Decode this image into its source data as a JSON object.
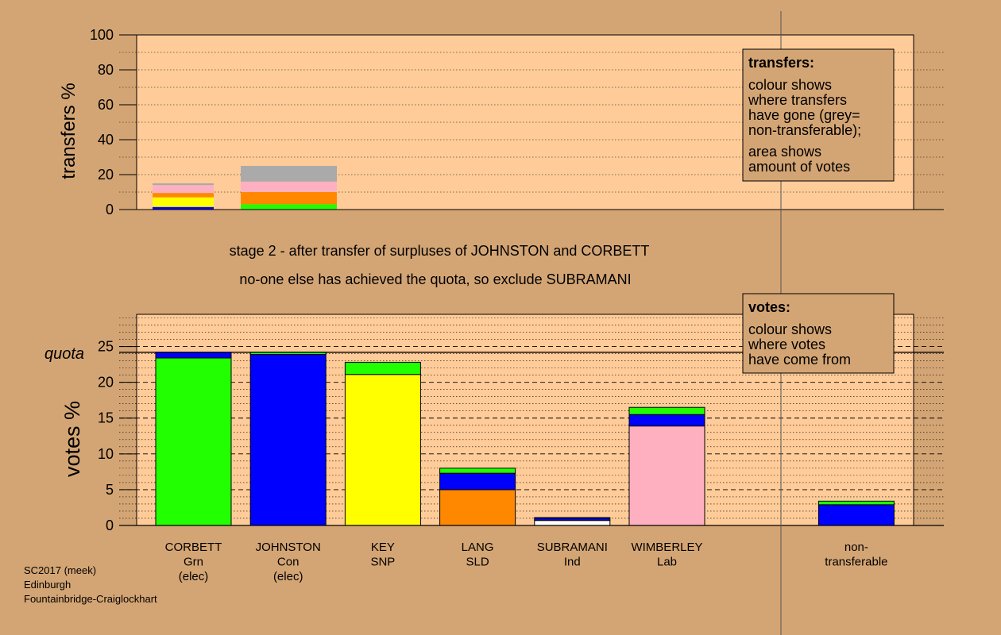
{
  "headings": {
    "line1": "stage 2 - after transfer of surpluses of JOHNSTON and CORBETT",
    "line2": "no-one else has achieved the quota, so exclude SUBRAMANI"
  },
  "colors": {
    "panel_bg": "#ffcc99",
    "outer_bg": "#d4a574",
    "green": "#22ff00",
    "blue": "#0000ff",
    "yellow": "#ffff00",
    "orange": "#ff8800",
    "pink": "#ffb0c0",
    "grey": "#aaaaaa",
    "white": "#ffffff"
  },
  "legends": {
    "transfers": {
      "title": "transfers:",
      "lines": [
        "colour shows",
        "where transfers",
        "have gone (grey=",
        "non-transferable);",
        "area shows",
        "amount of votes"
      ]
    },
    "votes": {
      "title": "votes:",
      "lines": [
        "colour shows",
        "where votes",
        "have come from"
      ]
    }
  },
  "footer": {
    "lines": [
      "SC2017 (meek)",
      "Edinburgh",
      "Fountainbridge-Craiglockhart"
    ]
  },
  "chart_data": [
    {
      "type": "bar",
      "stacked": true,
      "ylabel": "transfers %",
      "ylim": [
        0,
        100
      ],
      "yticks": [
        "0",
        "20",
        "40",
        "60",
        "80",
        "100"
      ],
      "grid": "dotted",
      "bars": [
        {
          "name": "johnston-transfers",
          "total": 15.0,
          "segments": [
            {
              "color": "blue",
              "value": 1.5
            },
            {
              "color": "yellow",
              "value": 5.5
            },
            {
              "color": "orange",
              "value": 2.5
            },
            {
              "color": "pink",
              "value": 4.5
            },
            {
              "color": "grey",
              "value": 1.0
            }
          ]
        },
        {
          "name": "corbett-transfers",
          "total": 25.0,
          "segments": [
            {
              "color": "green",
              "value": 3.0
            },
            {
              "color": "orange",
              "value": 7.0
            },
            {
              "color": "pink",
              "value": 6.0
            },
            {
              "color": "grey",
              "value": 9.0
            }
          ]
        }
      ]
    },
    {
      "type": "bar",
      "stacked": true,
      "ylabel": "votes %",
      "ylim": [
        0,
        29.5
      ],
      "yticks": [
        "0",
        "5",
        "10",
        "15",
        "20",
        "25"
      ],
      "quota": 24.2,
      "quota_label": "quota",
      "grid": "dashed",
      "categories": [
        {
          "lines": [
            "CORBETT",
            "Grn",
            "(elec)"
          ],
          "segments": [
            {
              "color": "green",
              "value": 23.4
            },
            {
              "color": "blue",
              "value": 0.8
            }
          ]
        },
        {
          "lines": [
            "JOHNSTON",
            "Con",
            "(elec)"
          ],
          "segments": [
            {
              "color": "blue",
              "value": 23.9
            },
            {
              "color": "green",
              "value": 0.3
            }
          ]
        },
        {
          "lines": [
            "KEY",
            "SNP"
          ],
          "segments": [
            {
              "color": "yellow",
              "value": 21.1
            },
            {
              "color": "green",
              "value": 1.7
            }
          ]
        },
        {
          "lines": [
            "LANG",
            "SLD"
          ],
          "segments": [
            {
              "color": "orange",
              "value": 5.0
            },
            {
              "color": "blue",
              "value": 2.3
            },
            {
              "color": "green",
              "value": 0.7
            }
          ]
        },
        {
          "lines": [
            "SUBRAMANI",
            "Ind"
          ],
          "segments": [
            {
              "color": "white",
              "value": 0.7
            },
            {
              "color": "blue",
              "value": 0.3
            },
            {
              "color": "green",
              "value": 0.1
            }
          ]
        },
        {
          "lines": [
            "WIMBERLEY",
            "Lab"
          ],
          "segments": [
            {
              "color": "pink",
              "value": 13.9
            },
            {
              "color": "blue",
              "value": 1.6
            },
            {
              "color": "green",
              "value": 1.0
            }
          ]
        },
        {
          "lines": [],
          "segments": []
        },
        {
          "lines": [
            "non-",
            "transferable"
          ],
          "segments": [
            {
              "color": "blue",
              "value": 2.9
            },
            {
              "color": "green",
              "value": 0.5
            }
          ]
        }
      ]
    }
  ]
}
